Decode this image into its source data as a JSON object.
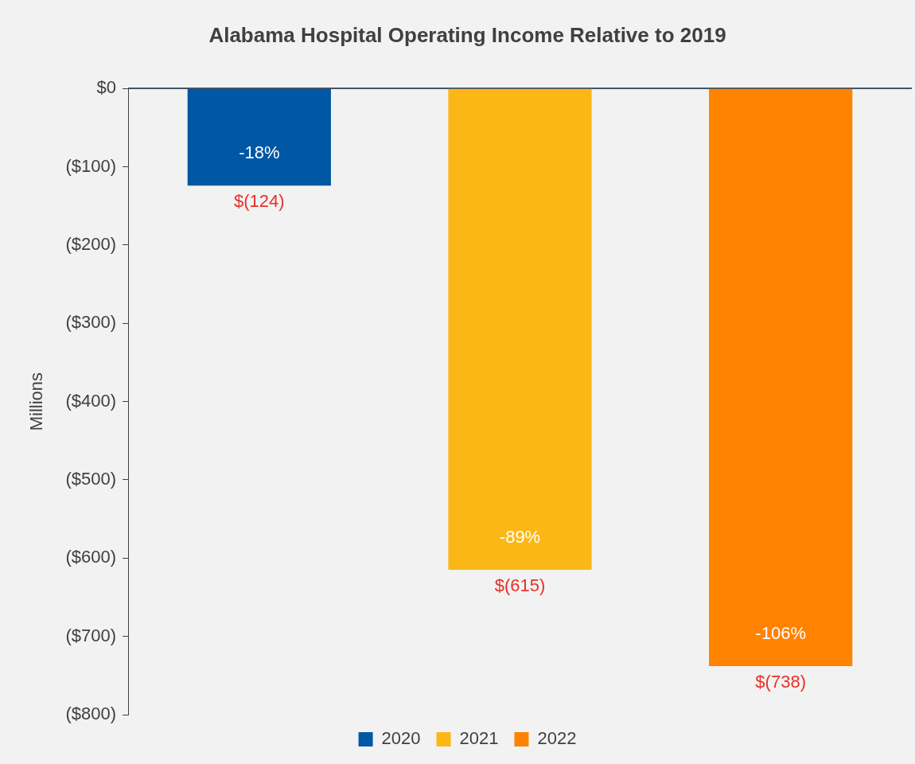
{
  "chart_data": {
    "type": "bar",
    "title": "Alabama Hospital Operating Income Relative to 2019",
    "ylabel": "Millions",
    "categories": [
      null,
      null,
      null
    ],
    "series": [
      {
        "name": "2020",
        "color": "#0057a3",
        "values": [
          -124,
          null,
          null
        ],
        "value_labels": [
          "$(124)",
          null,
          null
        ]
      },
      {
        "name": "2021",
        "color": "#fbb716",
        "values": [
          null,
          -615,
          null
        ],
        "value_labels": [
          null,
          "$(615)",
          null
        ]
      },
      {
        "name": "2022",
        "color": "#ff8200",
        "values": [
          null,
          null,
          -738
        ],
        "value_labels": [
          null,
          null,
          "$(738)"
        ]
      }
    ],
    "annotations": [
      "-18%",
      "-89%",
      "-106%"
    ],
    "ylim": [
      -800,
      0
    ],
    "yticks": [
      {
        "value": 0,
        "label": "$0"
      },
      {
        "value": -100,
        "label": "($100)"
      },
      {
        "value": -200,
        "label": "($200)"
      },
      {
        "value": -300,
        "label": "($300)"
      },
      {
        "value": -400,
        "label": "($400)"
      },
      {
        "value": -500,
        "label": "($500)"
      },
      {
        "value": -600,
        "label": "($600)"
      },
      {
        "value": -700,
        "label": "($700)"
      },
      {
        "value": -800,
        "label": "($800)"
      }
    ],
    "grid": false,
    "legend": "bottom"
  }
}
